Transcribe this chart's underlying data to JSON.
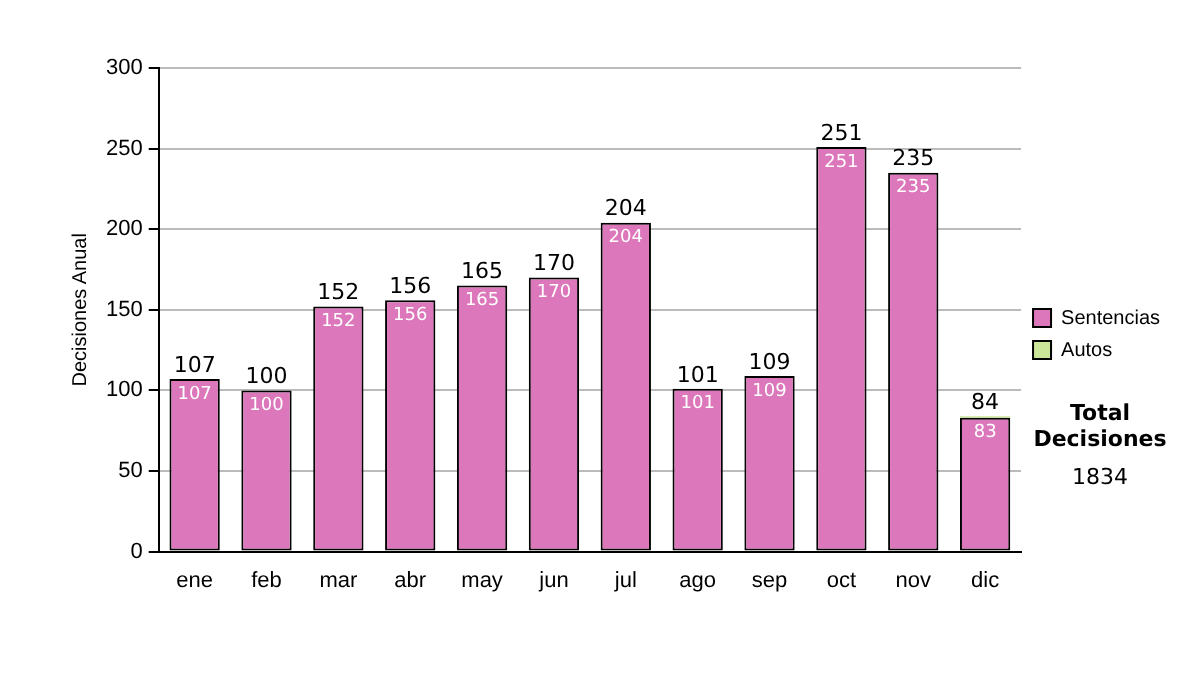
{
  "chart_data": {
    "type": "bar",
    "ylabel": "Decisiones Anual",
    "categories": [
      "ene",
      "feb",
      "mar",
      "abr",
      "may",
      "jun",
      "jul",
      "ago",
      "sep",
      "oct",
      "nov",
      "dic"
    ],
    "stacked": true,
    "series": [
      {
        "name": "Sentencias",
        "color": "#dd77bb",
        "values": [
          107,
          100,
          152,
          156,
          165,
          170,
          204,
          101,
          109,
          251,
          235,
          83
        ],
        "value_labels": [
          "107",
          "100",
          "152",
          "156",
          "165",
          "170",
          "204",
          "101",
          "109",
          "251",
          "235",
          "83"
        ]
      },
      {
        "name": "Autos",
        "color": "#cce699",
        "values": [
          0,
          0,
          0,
          0,
          0,
          0,
          0,
          0,
          0,
          0,
          0,
          1
        ]
      }
    ],
    "totals": [
      "107",
      "100",
      "152",
      "156",
      "165",
      "170",
      "204",
      "101",
      "109",
      "251",
      "235",
      "84"
    ],
    "ylim": [
      0,
      300
    ],
    "yticks": [
      0,
      50,
      100,
      150,
      200,
      250,
      300
    ],
    "grid": "y",
    "legend": "right",
    "annotations": [
      "Total Decisiones",
      "1834"
    ]
  }
}
